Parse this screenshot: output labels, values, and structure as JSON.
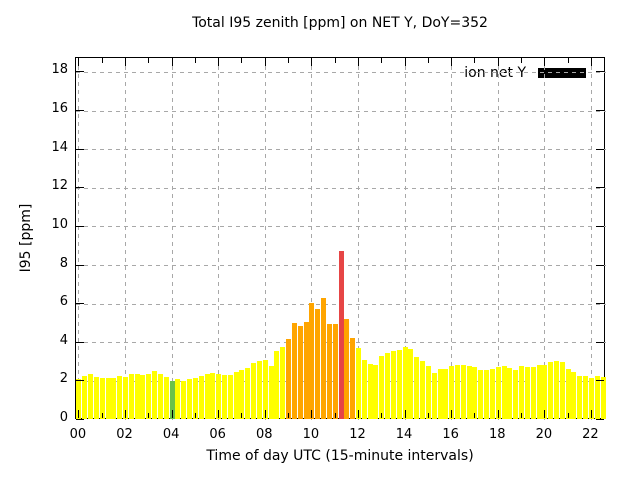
{
  "page": {
    "background": "#ffffff"
  },
  "chart_data": {
    "type": "bar",
    "title": "Total I95 zenith [ppm] on NET Y, DoY=352",
    "xlabel": "Time of day UTC (15-minute intervals)",
    "ylabel": "I95 [ppm]",
    "legend": {
      "label": "ion net Y",
      "swatch_color": "#000000",
      "position": "top-right"
    },
    "start_time": "00:00",
    "interval_minutes": 15,
    "xlim_hours": [
      -0.125,
      22.625
    ],
    "ylim": [
      0,
      18.75
    ],
    "xtick_hours": [
      0,
      2,
      4,
      6,
      8,
      10,
      12,
      14,
      16,
      18,
      20,
      22
    ],
    "xtick_labels": [
      "00",
      "02",
      "04",
      "06",
      "08",
      "10",
      "12",
      "14",
      "16",
      "18",
      "20",
      "22"
    ],
    "minor_xtick_hours": [
      1,
      3,
      5,
      7,
      9,
      11,
      13,
      15,
      17,
      19,
      21
    ],
    "ytick_values": [
      0,
      2,
      4,
      6,
      8,
      10,
      12,
      14,
      16,
      18
    ],
    "ytick_labels": [
      "0",
      "2",
      "4",
      "6",
      "8",
      "10",
      "12",
      "14",
      "16",
      "18"
    ],
    "grid": true,
    "palette": {
      "y": "#ffff00",
      "o": "#ffa500",
      "r": "#e64545",
      "g": "#6cc24a"
    },
    "values": [
      2.1,
      2.3,
      2.4,
      2.25,
      2.2,
      2.15,
      2.2,
      2.3,
      2.25,
      2.4,
      2.4,
      2.35,
      2.4,
      2.55,
      2.4,
      2.25,
      2.0,
      2.1,
      2.0,
      2.1,
      2.2,
      2.3,
      2.4,
      2.45,
      2.4,
      2.35,
      2.35,
      2.5,
      2.6,
      2.7,
      2.95,
      3.05,
      3.1,
      2.8,
      3.55,
      3.8,
      4.2,
      5.0,
      4.85,
      5.1,
      6.05,
      5.75,
      6.3,
      4.95,
      4.95,
      8.75,
      5.25,
      4.25,
      3.75,
      3.1,
      2.9,
      2.85,
      3.3,
      3.45,
      3.55,
      3.6,
      3.8,
      3.7,
      3.25,
      3.05,
      2.8,
      2.45,
      2.65,
      2.65,
      2.8,
      2.85,
      2.85,
      2.8,
      2.75,
      2.6,
      2.6,
      2.65,
      2.75,
      2.8,
      2.7,
      2.6,
      2.8,
      2.75,
      2.75,
      2.85,
      2.85,
      3.0,
      3.05,
      3.0,
      2.65,
      2.5,
      2.3,
      2.3,
      2.2,
      2.3,
      2.25
    ],
    "bar_colors": [
      "y",
      "y",
      "y",
      "y",
      "y",
      "y",
      "y",
      "y",
      "y",
      "y",
      "y",
      "y",
      "y",
      "y",
      "y",
      "y",
      "g",
      "y",
      "y",
      "y",
      "y",
      "y",
      "y",
      "y",
      "y",
      "y",
      "y",
      "y",
      "y",
      "y",
      "y",
      "y",
      "y",
      "y",
      "y",
      "y",
      "o",
      "o",
      "o",
      "o",
      "o",
      "o",
      "o",
      "o",
      "o",
      "r",
      "o",
      "o",
      "y",
      "y",
      "y",
      "y",
      "y",
      "y",
      "y",
      "y",
      "y",
      "y",
      "y",
      "y",
      "y",
      "y",
      "y",
      "y",
      "y",
      "y",
      "y",
      "y",
      "y",
      "y",
      "y",
      "y",
      "y",
      "y",
      "y",
      "y",
      "y",
      "y",
      "y",
      "y",
      "y",
      "y",
      "y",
      "y",
      "y",
      "y",
      "y",
      "y",
      "y",
      "y",
      "y"
    ]
  }
}
